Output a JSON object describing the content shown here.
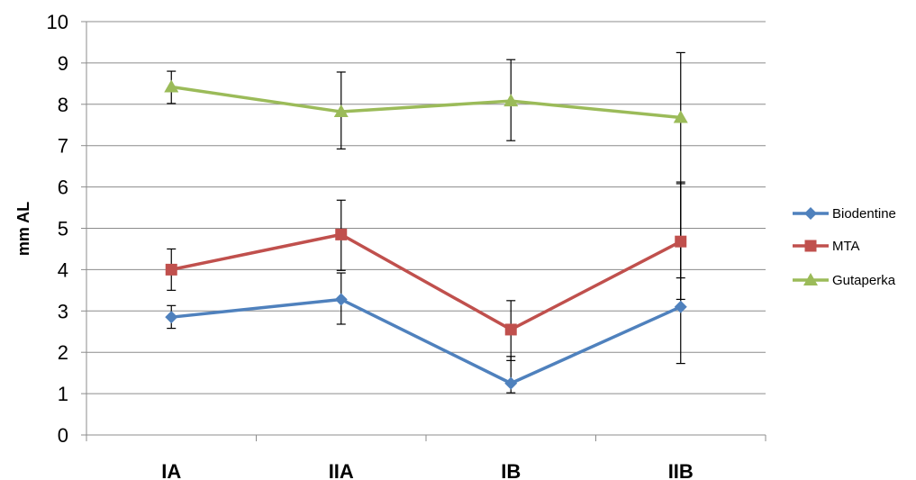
{
  "chart_data": {
    "type": "line",
    "ylabel": "mm AL",
    "xlabel": "",
    "categories": [
      "IA",
      "IIA",
      "IB",
      "IIB"
    ],
    "ylim": [
      0,
      10
    ],
    "yticks": [
      0,
      1,
      2,
      3,
      4,
      5,
      6,
      7,
      8,
      9,
      10
    ],
    "grid": "horizontal",
    "legend_position": "right",
    "series": [
      {
        "name": "Biodentine",
        "color": "#4F81BD",
        "marker": "diamond",
        "values": [
          2.85,
          3.28,
          1.25,
          3.1
        ],
        "err_low": [
          2.58,
          2.68,
          1.02,
          1.73
        ],
        "err_high": [
          3.13,
          3.92,
          1.9,
          6.08
        ]
      },
      {
        "name": "MTA",
        "color": "#C0504D",
        "marker": "square",
        "values": [
          4.0,
          4.85,
          2.55,
          4.68
        ],
        "err_low": [
          3.5,
          3.98,
          1.8,
          3.28
        ],
        "err_high": [
          4.5,
          5.68,
          3.25,
          6.12
        ]
      },
      {
        "name": "Gutaperka",
        "color": "#9BBB59",
        "marker": "triangle",
        "values": [
          8.42,
          7.82,
          8.08,
          7.68
        ],
        "err_low": [
          8.02,
          6.92,
          7.12,
          3.8
        ],
        "err_high": [
          8.8,
          8.78,
          9.08,
          9.25
        ]
      }
    ]
  }
}
